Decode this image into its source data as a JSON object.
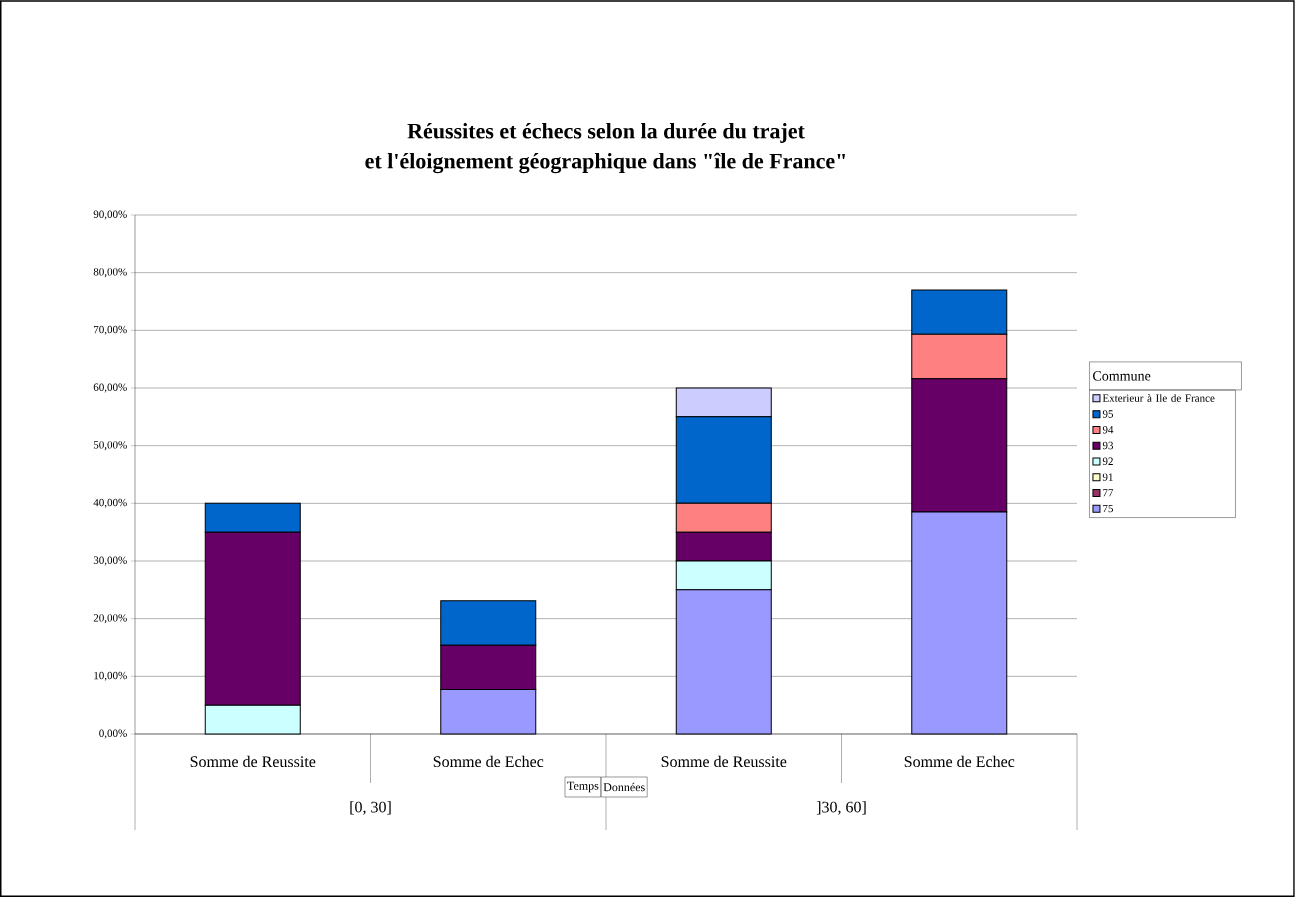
{
  "chart_data": {
    "type": "bar",
    "stacked": true,
    "title": "Réussites et échecs selon la durée du trajet",
    "subtitle": "et l'éloignement géographique dans \"île de France\"",
    "categories": [
      "Somme de Reussite",
      "Somme de Echec",
      "Somme de Reussite",
      "Somme de Echec"
    ],
    "series": [
      {
        "name": "75",
        "color": "#9999ff",
        "values": [
          0,
          7.7,
          25,
          38.5
        ]
      },
      {
        "name": "77",
        "color": "#993366",
        "values": [
          0,
          0,
          0,
          0
        ]
      },
      {
        "name": "91",
        "color": "#ffffcc",
        "values": [
          0,
          0,
          0,
          0
        ]
      },
      {
        "name": "92",
        "color": "#ccffff",
        "values": [
          5,
          0,
          5,
          0
        ]
      },
      {
        "name": "93",
        "color": "#660066",
        "values": [
          30,
          7.7,
          5,
          23.1
        ]
      },
      {
        "name": "94",
        "color": "#ff8080",
        "values": [
          0,
          0,
          5,
          7.7
        ]
      },
      {
        "name": "95",
        "color": "#0066cc",
        "values": [
          5,
          7.7,
          15,
          7.7
        ]
      },
      {
        "name": "Exterieur à Ile de France",
        "color": "#ccccff",
        "values": [
          0,
          0,
          5,
          0
        ]
      }
    ],
    "legend_title": "Commune",
    "legend": "right",
    "grid": "y",
    "ylim": [
      0,
      90
    ],
    "yticks": [
      {
        "value": 0,
        "label": "0,00%"
      },
      {
        "value": 10,
        "label": "10,00%"
      },
      {
        "value": 20,
        "label": "20,00%"
      },
      {
        "value": 30,
        "label": "30,00%"
      },
      {
        "value": 40,
        "label": "40,00%"
      },
      {
        "value": 50,
        "label": "50,00%"
      },
      {
        "value": 60,
        "label": "60,00%"
      },
      {
        "value": 70,
        "label": "70,00%"
      },
      {
        "value": 80,
        "label": "80,00%"
      },
      {
        "value": 90,
        "label": "90,00%"
      }
    ],
    "annotations": [
      "[0, 30]",
      "]30, 60]",
      "Temps",
      "Données"
    ]
  }
}
